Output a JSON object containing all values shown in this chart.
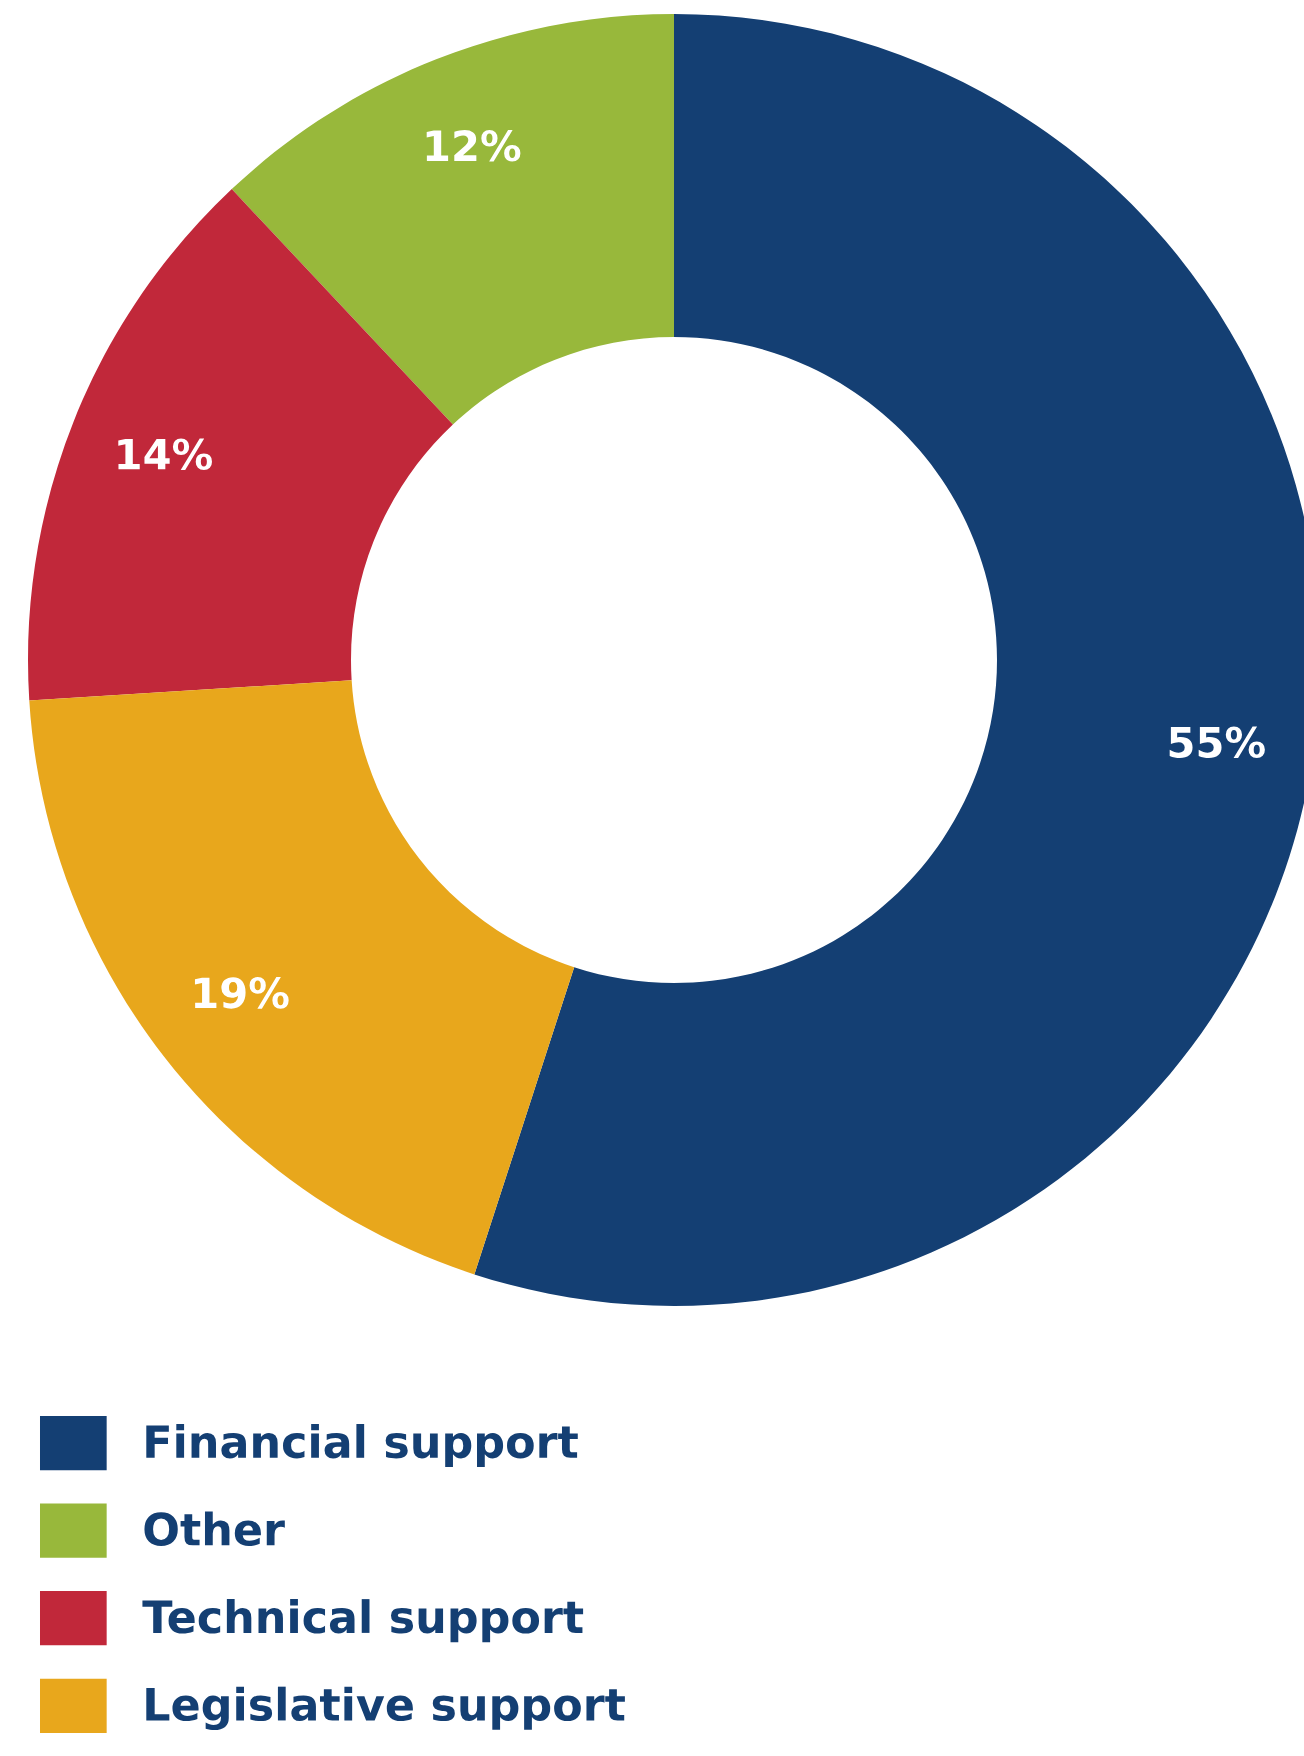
{
  "chart_data": {
    "type": "donut",
    "categories": [
      "Financial support",
      "Other",
      "Technical support",
      "Legislative support"
    ],
    "values": [
      55,
      12,
      14,
      19
    ],
    "colors": [
      "#143f73",
      "#98b83b",
      "#c1283a",
      "#e8a71c"
    ],
    "value_labels": [
      "55%",
      "12%",
      "14%",
      "19%"
    ],
    "legend": "bottom"
  }
}
